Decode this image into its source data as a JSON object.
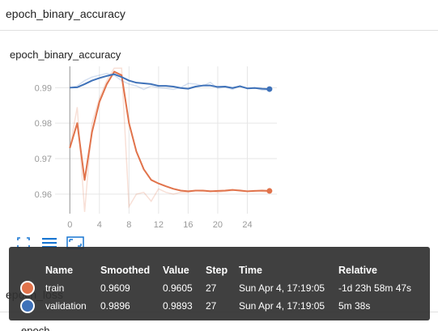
{
  "section_title": "epoch_binary_accuracy",
  "card_title": "epoch_binary_accuracy",
  "next_section_title": "epoch_loss",
  "next_section_stub": "epoch_lo",
  "toolbar": {
    "icons": [
      "fit-domain-icon",
      "toggle-log-scale-icon",
      "expand-chart-icon"
    ],
    "color": "#1976d2"
  },
  "chart_data": {
    "type": "line",
    "title": "",
    "xlabel": "",
    "ylabel": "",
    "xlim": [
      -2,
      28
    ],
    "ylim": [
      0.9545,
      0.996
    ],
    "x_ticks": [
      "0",
      "4",
      "8",
      "12",
      "16",
      "20",
      "24"
    ],
    "y_ticks": [
      "0.96",
      "0.97",
      "0.98",
      "0.99"
    ],
    "grid": true,
    "series": [
      {
        "name": "train",
        "color": "#e1734b",
        "x": [
          0,
          1,
          2,
          3,
          4,
          5,
          6,
          7,
          8,
          9,
          10,
          11,
          12,
          13,
          14,
          15,
          16,
          17,
          18,
          19,
          20,
          21,
          22,
          23,
          24,
          25,
          26,
          27
        ],
        "raw": [
          0.973,
          0.9845,
          0.955,
          0.98,
          0.987,
          0.992,
          0.9955,
          0.9955,
          0.9565,
          0.96,
          0.9605,
          0.958,
          0.9615,
          0.9605,
          0.96,
          0.9605,
          0.9605,
          0.961,
          0.9608,
          0.961,
          0.9605,
          0.9608,
          0.961,
          0.9612,
          0.9608,
          0.961,
          0.9607,
          0.9605
        ],
        "smoothed": [
          0.973,
          0.98,
          0.964,
          0.9775,
          0.986,
          0.991,
          0.9945,
          0.9935,
          0.98,
          0.972,
          0.967,
          0.964,
          0.963,
          0.9622,
          0.9615,
          0.961,
          0.9608,
          0.961,
          0.961,
          0.9608,
          0.9609,
          0.961,
          0.9612,
          0.961,
          0.9608,
          0.9609,
          0.961,
          0.9609
        ]
      },
      {
        "name": "validation",
        "color": "#3f72b9",
        "x": [
          0,
          1,
          2,
          3,
          4,
          5,
          6,
          7,
          8,
          9,
          10,
          11,
          12,
          13,
          14,
          15,
          16,
          17,
          18,
          19,
          20,
          21,
          22,
          23,
          24,
          25,
          26,
          27
        ],
        "raw": [
          0.99,
          0.9905,
          0.992,
          0.993,
          0.9935,
          0.994,
          0.9935,
          0.992,
          0.991,
          0.9905,
          0.9895,
          0.9905,
          0.99,
          0.9898,
          0.9895,
          0.99,
          0.9912,
          0.991,
          0.9905,
          0.9915,
          0.9898,
          0.9902,
          0.9895,
          0.9905,
          0.9898,
          0.99,
          0.9893,
          0.9893
        ],
        "smoothed": [
          0.99,
          0.9901,
          0.991,
          0.992,
          0.9927,
          0.9933,
          0.9938,
          0.993,
          0.992,
          0.9914,
          0.9912,
          0.991,
          0.9905,
          0.9905,
          0.9903,
          0.9899,
          0.9897,
          0.9903,
          0.9906,
          0.9906,
          0.9902,
          0.9903,
          0.9899,
          0.9904,
          0.9898,
          0.9899,
          0.9897,
          0.9896
        ]
      }
    ]
  },
  "tooltip": {
    "headers": [
      "Name",
      "Smoothed",
      "Value",
      "Step",
      "Time",
      "Relative"
    ],
    "rows": [
      {
        "name": "train",
        "color": "#e1734b",
        "smoothed": "0.9609",
        "value": "0.9605",
        "step": "27",
        "time": "Sun Apr 4, 17:19:05",
        "relative": "-1d 23h 58m 47s"
      },
      {
        "name": "validation",
        "color": "#3f72b9",
        "smoothed": "0.9896",
        "value": "0.9893",
        "step": "27",
        "time": "Sun Apr 4, 17:19:05",
        "relative": "5m 38s"
      }
    ]
  }
}
